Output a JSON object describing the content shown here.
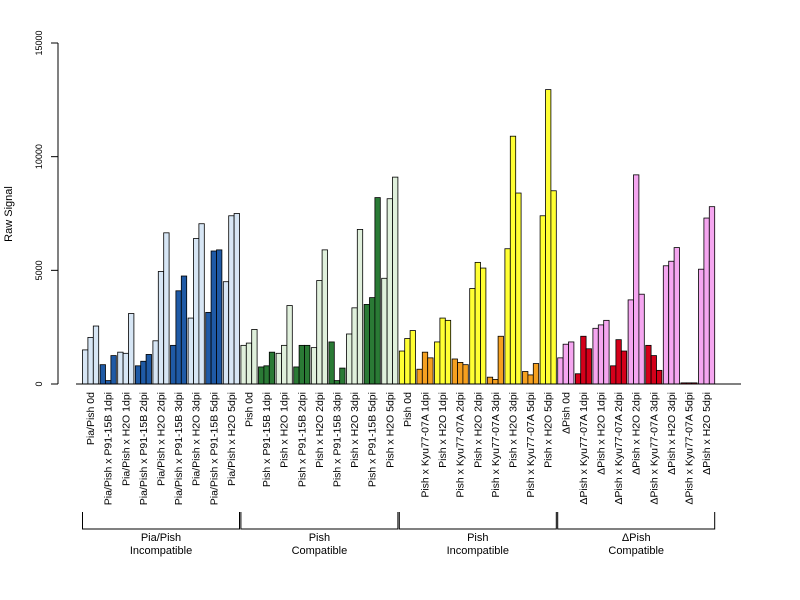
{
  "chart_data": {
    "type": "bar",
    "ylabel": "Raw Signal",
    "ylim": [
      0,
      15000
    ],
    "yticks": [
      0,
      5000,
      10000,
      15000
    ],
    "grid": false,
    "bars_per_category": 3,
    "categories": [
      "Pia/Pish 0d",
      "Pia/Pish x P91-15B 1dpi",
      "Pia/Pish x H2O 1dpi",
      "Pia/Pish x P91-15B 2dpi",
      "Pia/Pish x H2O 2dpi",
      "Pia/Pish x P91-15B 3dpi",
      "Pia/Pish x H2O 3dpi",
      "Pia/Pish x P91-15B 5dpi",
      "Pia/Pish x H2O 5dpi",
      "Pish 0d",
      "Pish x P91-15B 1dpi",
      "Pish x H2O 1dpi",
      "Pish x P91-15B 2dpi",
      "Pish x H2O 2dpi",
      "Pish x P91-15B 3dpi",
      "Pish x H2O 3dpi",
      "Pish x P91-15B 5dpi",
      "Pish x H2O 5dpi",
      "Pish 0d",
      "Pish x Kyu77-07A 1dpi",
      "Pish x H2O 1dpi",
      "Pish x Kyu77-07A 2dpi",
      "Pish x H2O 2dpi",
      "Pish x Kyu77-07A 3dpi",
      "Pish x H2O 3dpi",
      "Pish x Kyu77-07A 5dpi",
      "Pish x H2O 5dpi",
      "ΔPish 0d",
      "ΔPish x Kyu77-07A 1dpi",
      "ΔPish x H2O 1dpi",
      "ΔPish x Kyu77-07A 2dpi",
      "ΔPish x H2O 2dpi",
      "ΔPish x Kyu77-07A 3dpi",
      "ΔPish x H2O 3dpi",
      "ΔPish x Kyu77-07A 5dpi",
      "ΔPish x H2O 5dpi"
    ],
    "values": [
      [
        1500,
        2050,
        2550
      ],
      [
        850,
        150,
        1250
      ],
      [
        1400,
        1350,
        3100
      ],
      [
        800,
        1000,
        1300
      ],
      [
        1900,
        4950,
        6650
      ],
      [
        1700,
        4100,
        4750
      ],
      [
        2900,
        6400,
        7050
      ],
      [
        3150,
        5850,
        5900
      ],
      [
        4500,
        7400,
        7500
      ],
      [
        1700,
        1800,
        2400
      ],
      [
        750,
        800,
        1400
      ],
      [
        1350,
        1700,
        3450
      ],
      [
        750,
        1700,
        1700
      ],
      [
        1600,
        4550,
        5900
      ],
      [
        1850,
        150,
        700
      ],
      [
        2200,
        3350,
        6800
      ],
      [
        3500,
        3800,
        8200
      ],
      [
        4650,
        8150,
        9100
      ],
      [
        1450,
        2000,
        2350
      ],
      [
        650,
        1400,
        1150
      ],
      [
        1850,
        2900,
        2800
      ],
      [
        1100,
        950,
        850
      ],
      [
        4200,
        5350,
        5100
      ],
      [
        300,
        200,
        2100
      ],
      [
        5950,
        10900,
        8400
      ],
      [
        550,
        400,
        900
      ],
      [
        7400,
        12950,
        8500
      ],
      [
        1150,
        1750,
        1850
      ],
      [
        450,
        2100,
        1550
      ],
      [
        2450,
        2600,
        2800
      ],
      [
        800,
        1950,
        1450
      ],
      [
        3700,
        9200,
        3950
      ],
      [
        1700,
        1250,
        600
      ],
      [
        5200,
        5400,
        6000
      ],
      [
        50,
        50,
        50
      ],
      [
        5050,
        7300,
        7800
      ]
    ],
    "category_colors": [
      "#d7e6f5",
      "#1f5aa6",
      "#d7e6f5",
      "#1f5aa6",
      "#d7e6f5",
      "#1f5aa6",
      "#d7e6f5",
      "#1f5aa6",
      "#d7e6f5",
      "#e0f0dc",
      "#2a7a35",
      "#e0f0dc",
      "#2a7a35",
      "#e0f0dc",
      "#2a7a35",
      "#e0f0dc",
      "#2a7a35",
      "#e0f0dc",
      "#ffff33",
      "#f5a020",
      "#ffff33",
      "#f5a020",
      "#ffff33",
      "#f5a020",
      "#ffff33",
      "#f5a020",
      "#ffff33",
      "#f5a6f0",
      "#d4001a",
      "#f5a6f0",
      "#d4001a",
      "#f5a6f0",
      "#d4001a",
      "#f5a6f0",
      "#d4001a",
      "#f5a6f0"
    ],
    "groups": [
      {
        "line1": "Pia/Pish",
        "line2": "Incompatible",
        "start": 0,
        "end": 8
      },
      {
        "line1": "Pish",
        "line2": "Compatible",
        "start": 9,
        "end": 17
      },
      {
        "line1": "Pish",
        "line2": "Incompatible",
        "start": 18,
        "end": 26
      },
      {
        "line1": "ΔPish",
        "line2": "Compatible",
        "start": 27,
        "end": 35
      }
    ]
  }
}
